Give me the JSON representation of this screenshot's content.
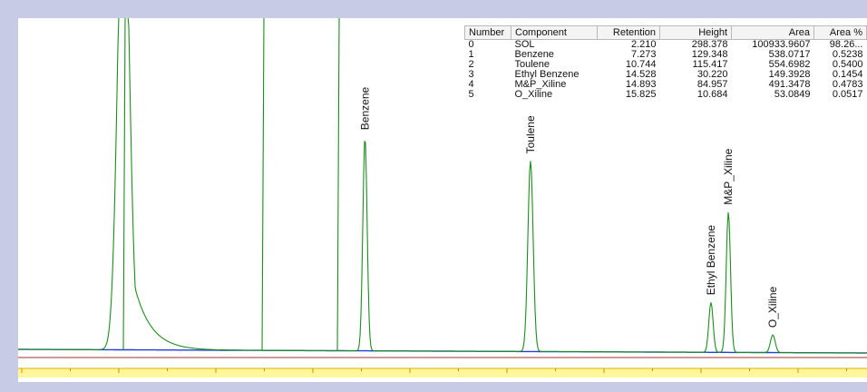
{
  "chart_data": {
    "type": "line",
    "title": "",
    "xlabel": "",
    "ylabel": "",
    "xlim": [
      0,
      17.8
    ],
    "ylim": [
      -12,
      200
    ],
    "colors": {
      "signal": "#1a8f1a",
      "baseline": "#1f3fd6",
      "reference_line": "#a03030",
      "axis_band": "#fff799",
      "axis_band_border": "#e0b000"
    },
    "peaks": [
      {
        "name": "SOL",
        "x": 2.21,
        "height": 298.378,
        "label_shown": false
      },
      {
        "name": "Benzene",
        "x": 7.273,
        "height": 129.348,
        "label_shown": true
      },
      {
        "name": "Toulene",
        "x": 10.744,
        "height": 115.417,
        "label_shown": true
      },
      {
        "name": "Ethyl Benzene",
        "x": 14.528,
        "height": 30.22,
        "label_shown": true
      },
      {
        "name": "M&P_Xiline",
        "x": 14.893,
        "height": 84.957,
        "label_shown": true
      },
      {
        "name": "O_Xiline",
        "x": 15.825,
        "height": 10.684,
        "label_shown": true
      }
    ]
  },
  "peak_table": {
    "headers": [
      "Number",
      "Component",
      "Retention",
      "Height",
      "Area",
      "Area %"
    ],
    "rows": [
      [
        "0",
        "SOL",
        "2.210",
        "298.378",
        "100933.9607",
        "98.26..."
      ],
      [
        "1",
        "Benzene",
        "7.273",
        "129.348",
        "538.0717",
        "0.5238"
      ],
      [
        "2",
        "Toulene",
        "10.744",
        "115.417",
        "554.6982",
        "0.5400"
      ],
      [
        "3",
        "Ethyl Benzene",
        "14.528",
        "30.220",
        "149.3928",
        "0.1454"
      ],
      [
        "4",
        "M&P_Xiline",
        "14.893",
        "84.957",
        "491.3478",
        "0.4783"
      ],
      [
        "5",
        "O_Xiline",
        "15.825",
        "10.684",
        "53.0849",
        "0.0517"
      ]
    ]
  }
}
